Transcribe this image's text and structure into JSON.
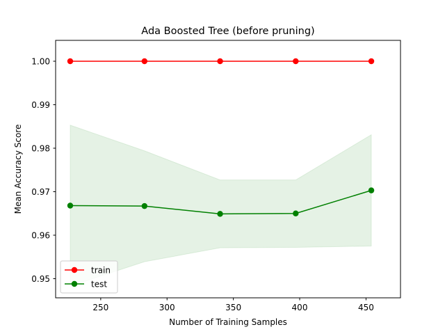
{
  "chart_data": {
    "type": "line",
    "title": "Ada Boosted Tree (before pruning)",
    "xlabel": "Number of Training Samples",
    "ylabel": "Mean Accuracy Score",
    "xlim": [
      216,
      476
    ],
    "ylim": [
      0.9456,
      1.0048
    ],
    "xticks": [
      250,
      300,
      350,
      400,
      450
    ],
    "yticks": [
      0.95,
      0.96,
      0.97,
      0.98,
      0.99,
      1.0
    ],
    "xtick_labels": [
      "250",
      "300",
      "350",
      "400",
      "450"
    ],
    "ytick_labels": [
      "0.95",
      "0.96",
      "0.97",
      "0.98",
      "0.99",
      "1.00"
    ],
    "grid": false,
    "legend_position": "lower-left",
    "x": [
      227,
      283,
      340,
      397,
      454
    ],
    "series": [
      {
        "name": "train",
        "color": "#ff0000",
        "marker": "circle",
        "values": [
          1.0,
          1.0,
          1.0,
          1.0,
          1.0
        ],
        "band": null
      },
      {
        "name": "test",
        "color": "#008000",
        "marker": "circle",
        "values": [
          0.9668,
          0.9667,
          0.9649,
          0.965,
          0.9703
        ],
        "band": {
          "upper": [
            0.9853,
            0.9794,
            0.9727,
            0.9727,
            0.9831
          ],
          "lower": [
            0.9483,
            0.9539,
            0.9571,
            0.9572,
            0.9575
          ],
          "fill": "#008000",
          "opacity": 0.1
        }
      }
    ]
  }
}
